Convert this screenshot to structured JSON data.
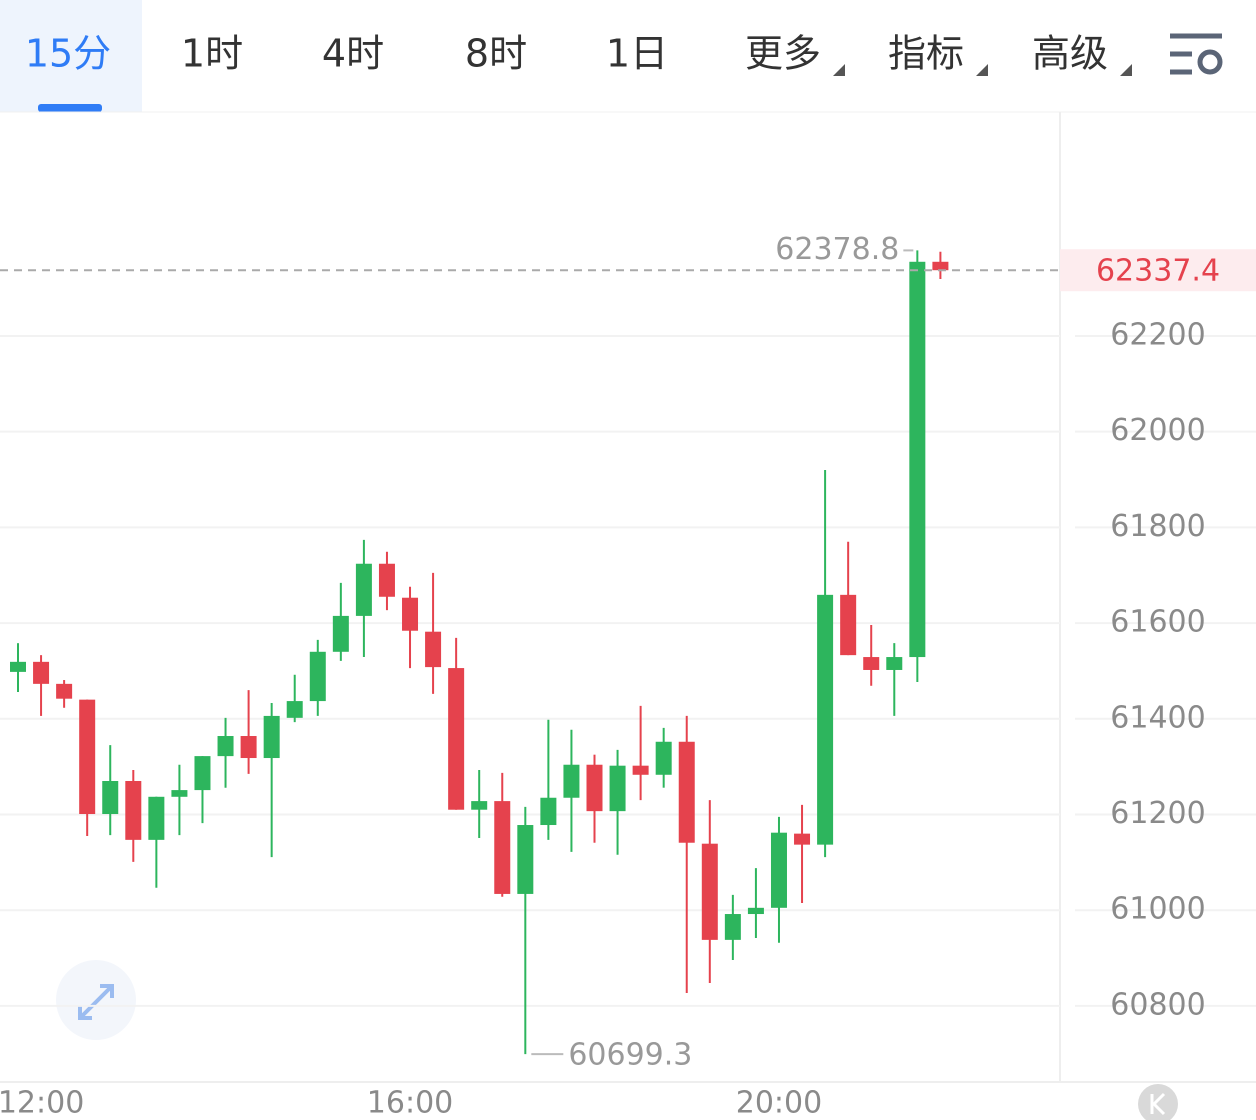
{
  "tabs": [
    "15分",
    "1时",
    "4时",
    "8时",
    "1日",
    "更多",
    "指标",
    "高级"
  ],
  "active_tab": 0,
  "chart_data": {
    "type": "candlestick",
    "categories": [
      null,
      "12:00",
      null,
      null,
      null,
      null,
      null,
      null,
      null,
      null,
      null,
      null,
      null,
      null,
      null,
      null,
      null,
      "16:00",
      null,
      null,
      null,
      null,
      null,
      null,
      null,
      null,
      null,
      null,
      null,
      null,
      null,
      null,
      null,
      "20:00",
      null,
      null,
      null,
      null,
      null,
      null,
      null
    ],
    "open": [
      61498,
      61519,
      61473,
      61440,
      61201,
      61270,
      61147,
      61237,
      61251,
      61322,
      61364,
      61318,
      61402,
      61437,
      61540,
      61615,
      61724,
      61653,
      61582,
      61506,
      61210,
      61228,
      61034,
      61178,
      61235,
      61304,
      61207,
      61302,
      61283,
      61352,
      61139,
      60938,
      60992,
      61005,
      61160,
      61137,
      61659,
      61529,
      61502,
      61529,
      62355
    ],
    "high": [
      61558,
      61533,
      61481,
      61440,
      61345,
      61293,
      61237,
      61304,
      61322,
      61402,
      61460,
      61433,
      61492,
      61565,
      61684,
      61774,
      61749,
      61676,
      61705,
      61569,
      61293,
      61287,
      61216,
      61398,
      61377,
      61325,
      61335,
      61427,
      61381,
      61406,
      61230,
      61032,
      61088,
      61195,
      61220,
      61920,
      61770,
      61596,
      61558,
      62378.8,
      62376
    ],
    "low": [
      61456,
      61406,
      61423,
      61155,
      61157,
      61101,
      61047,
      61157,
      61182,
      61256,
      61285,
      61111,
      61393,
      61406,
      61521,
      61529,
      61627,
      61506,
      61452,
      61210,
      61151,
      61028,
      60699.3,
      61147,
      61122,
      61141,
      61116,
      61230,
      61256,
      60827,
      60848,
      60896,
      60942,
      60932,
      61015,
      61111,
      61533,
      61469,
      61406,
      61477,
      62319
    ],
    "close": [
      61519,
      61473,
      61442,
      61201,
      61270,
      61147,
      61237,
      61251,
      61322,
      61364,
      61318,
      61406,
      61437,
      61540,
      61615,
      61724,
      61655,
      61584,
      61508,
      61210,
      61228,
      61034,
      61178,
      61235,
      61304,
      61207,
      61302,
      61283,
      61352,
      61141,
      60938,
      60992,
      61005,
      61162,
      61137,
      61659,
      61533,
      61502,
      61529,
      62355,
      62337.4
    ],
    "up_color": "#2db55d",
    "down_color": "#e5424d",
    "ylim": [
      60641,
      62668
    ],
    "yticks": [
      60800,
      61000,
      61200,
      61400,
      61600,
      61800,
      62000,
      62200
    ],
    "grid": true
  }
}
